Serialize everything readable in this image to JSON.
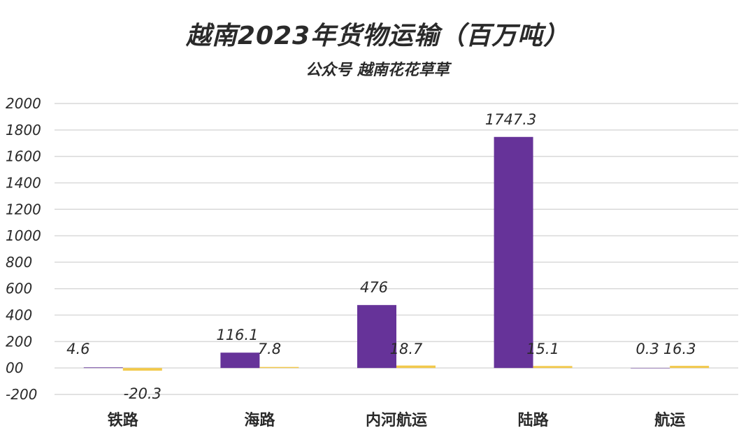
{
  "chart_data": {
    "type": "bar",
    "title": "越南2023年货物运输（百万吨）",
    "subtitle": "公众号 越南花花草草",
    "categories": [
      "铁路",
      "海路",
      "内河航运",
      "陆路",
      "航运"
    ],
    "series": [
      {
        "name": "Series 1",
        "color": "#663399",
        "values": [
          4.6,
          116.1,
          476,
          1747.3,
          0.3
        ],
        "labels": [
          "4.6",
          "116.1",
          "476",
          "1747.3",
          "0.3"
        ]
      },
      {
        "name": "Series 2",
        "color": "#F2C94C",
        "values": [
          -20.3,
          7.8,
          18.7,
          15.1,
          16.3
        ],
        "labels": [
          "-20.3",
          "7.8",
          "18.7",
          "15.1",
          "16.3"
        ]
      }
    ],
    "ylim": [
      -200,
      2000
    ],
    "yticks": [
      2000,
      1800,
      1600,
      1400,
      1200,
      1000,
      800,
      600,
      400,
      200,
      0,
      -200
    ],
    "ytick_labels": [
      "2000",
      "1800",
      "1600",
      "1400",
      "1200",
      "1000",
      "800",
      "600",
      "400",
      "200",
      "00",
      "-200"
    ],
    "xlabel": "",
    "ylabel": "",
    "grid": true,
    "legend": "none"
  }
}
